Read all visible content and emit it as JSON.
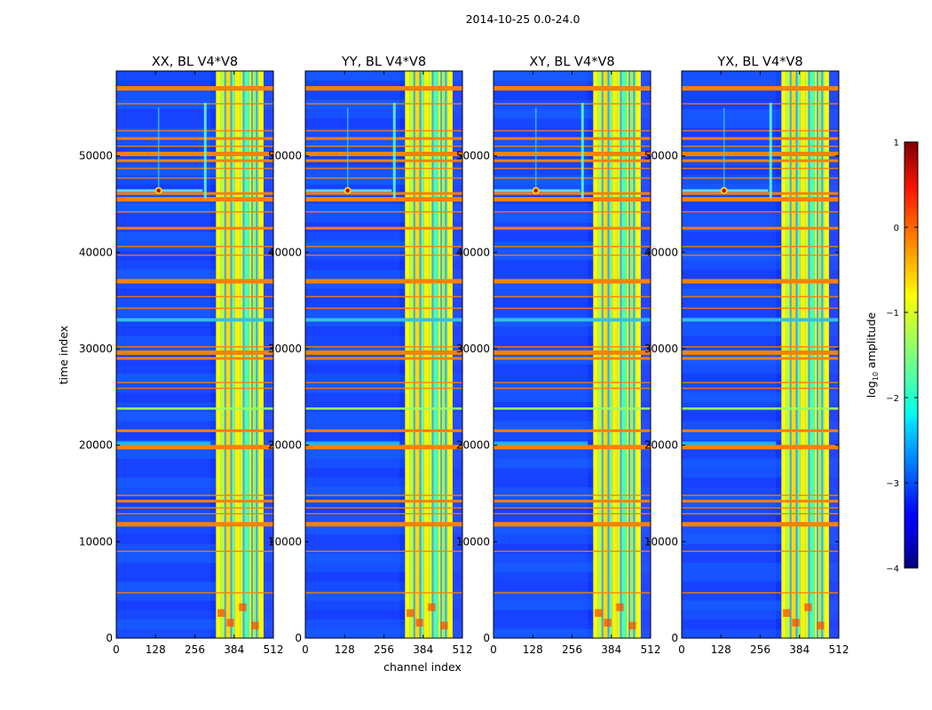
{
  "figure": {
    "suptitle": "2014-10-25 0.0-24.0"
  },
  "chart_data": {
    "type": "heatmap",
    "xlabel": "channel index",
    "ylabel": "time index",
    "xlim": [
      0,
      512
    ],
    "ylim": [
      0,
      58800
    ],
    "xticks": [
      0,
      128,
      256,
      384,
      512
    ],
    "yticks": [
      0,
      10000,
      20000,
      30000,
      40000,
      50000
    ],
    "panels": [
      {
        "title": "XX, BL V4*V8",
        "spike_channel": 138,
        "spike_time": 46400,
        "line_channel": 290
      },
      {
        "title": "YY, BL V4*V8",
        "spike_channel": 138,
        "spike_time": 46400,
        "line_channel": 290
      },
      {
        "title": "XY, BL V4*V8",
        "spike_channel": 138,
        "spike_time": 46400,
        "line_channel": 290
      },
      {
        "title": "YX, BL V4*V8",
        "spike_channel": 138,
        "spike_time": 46400,
        "line_channel": 290
      }
    ],
    "rfi_band_channels": [
      325,
      480
    ],
    "flagged_time_rows": [
      57000,
      55400,
      52600,
      51800,
      51000,
      50200,
      49500,
      48700,
      47700,
      46100,
      45500,
      44200,
      42500,
      40600,
      39700,
      37000,
      35400,
      34200,
      33000,
      30200,
      29600,
      29000,
      26500,
      25900,
      21500,
      19800,
      14800,
      14200,
      13500,
      12900,
      11800,
      9000,
      4700
    ],
    "colorbar": {
      "label": "log$_{10}$ amplitude",
      "label_main": "log",
      "label_sub": "10",
      "label_rest": " amplitude",
      "range": [
        -4,
        1
      ],
      "ticks": [
        1,
        0,
        -1,
        -2,
        -3,
        -4
      ],
      "tick_labels": [
        "1",
        "0",
        "−1",
        "−2",
        "−3",
        "−4"
      ],
      "colormap": "jet"
    }
  }
}
